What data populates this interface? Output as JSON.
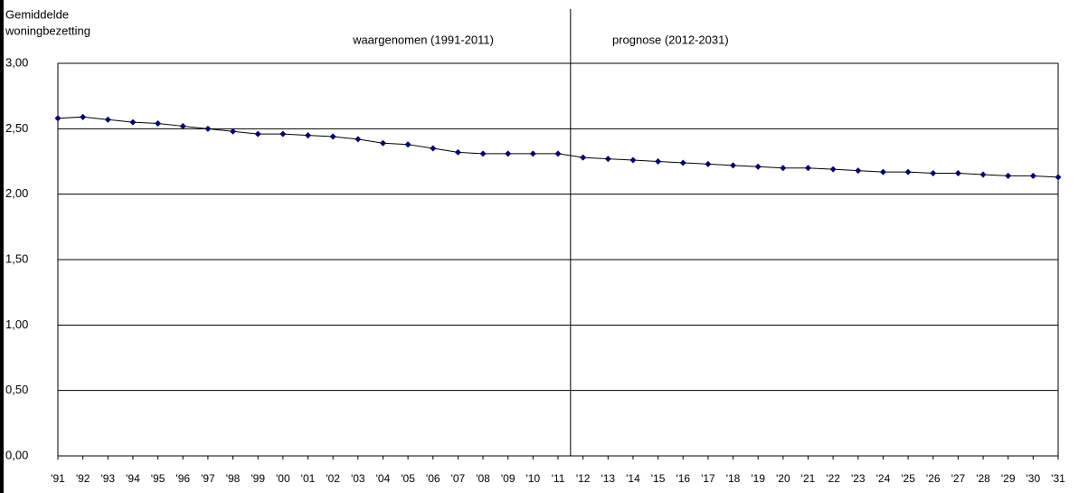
{
  "chart_data": {
    "type": "line",
    "y_label": [
      "Gemiddelde",
      "woningbezetting"
    ],
    "annotations": [
      "waargenomen (1991-2011)",
      "prognose (2012-2031)"
    ],
    "categories": [
      "'91",
      "'92",
      "'93",
      "'94",
      "'95",
      "'96",
      "'97",
      "'98",
      "'99",
      "'00",
      "'01",
      "'02",
      "'03",
      "'04",
      "'05",
      "'06",
      "'07",
      "'08",
      "'09",
      "'10",
      "'11",
      "'12",
      "'13",
      "'14",
      "'15",
      "'16",
      "'17",
      "'18",
      "'19",
      "'20",
      "'21",
      "'22",
      "'23",
      "'24",
      "'25",
      "'26",
      "'27",
      "'28",
      "'29",
      "'30",
      "'31"
    ],
    "series": [
      {
        "color": "#000066",
        "values": [
          2.58,
          2.59,
          2.57,
          2.55,
          2.54,
          2.52,
          2.5,
          2.48,
          2.46,
          2.46,
          2.45,
          2.44,
          2.42,
          2.39,
          2.38,
          2.35,
          2.32,
          2.31,
          2.31,
          2.31,
          2.31,
          2.28,
          2.27,
          2.26,
          2.25,
          2.24,
          2.23,
          2.22,
          2.21,
          2.2,
          2.2,
          2.19,
          2.18,
          2.17,
          2.17,
          2.16,
          2.16,
          2.15,
          2.14,
          2.14,
          2.13
        ]
      }
    ],
    "ylim": [
      0,
      3
    ],
    "yticks": [
      {
        "value": 0,
        "label": "0,00"
      },
      {
        "value": 0.5,
        "label": "0,50"
      },
      {
        "value": 1,
        "label": "1,00"
      },
      {
        "value": 1.5,
        "label": "1,50"
      },
      {
        "value": 2,
        "label": "2,00"
      },
      {
        "value": 2.5,
        "label": "2,50"
      },
      {
        "value": 3,
        "label": "3,00"
      }
    ],
    "grid": true
  }
}
